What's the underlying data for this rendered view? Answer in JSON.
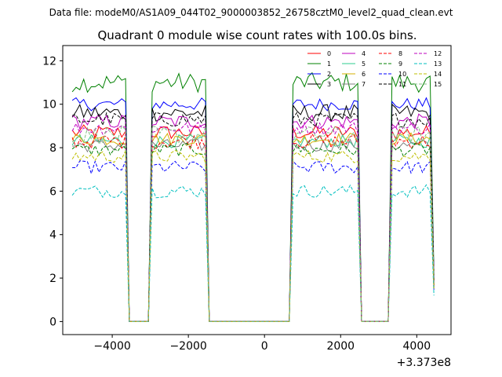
{
  "figure": {
    "supertitle": "Data file: modeM0/AS1A09_044T02_9000003852_26758cztM0_level2_quad_clean.evt"
  },
  "chart_data": {
    "type": "line",
    "title": "Quadrant 0 module wise count rates with 100.0s bins.",
    "xlabel": "",
    "ylabel": "",
    "x_offset_label": "+3.373e8",
    "xlim": [
      -5300,
      4900
    ],
    "ylim": [
      -0.6,
      12.7
    ],
    "x_ticks": [
      -4000,
      -2000,
      0,
      2000,
      4000
    ],
    "x_tick_labels": [
      "−4000",
      "−2000",
      "0",
      "2000",
      "4000"
    ],
    "y_ticks": [
      0,
      2,
      4,
      6,
      8,
      10,
      12
    ],
    "y_tick_labels": [
      "0",
      "2",
      "4",
      "6",
      "8",
      "10",
      "12"
    ],
    "grid": false,
    "legend_position": "top-right",
    "legend_columns": 4,
    "segments": [
      {
        "x_start": -5050,
        "x_end": -3650,
        "level_scale": 1.0
      },
      {
        "x_start": -3550,
        "x_end": -3050,
        "level_scale": 0.0
      },
      {
        "x_start": -2950,
        "x_end": -1550,
        "level_scale": 1.0
      },
      {
        "x_start": -1450,
        "x_end": 650,
        "level_scale": 0.0
      },
      {
        "x_start": 750,
        "x_end": 2450,
        "level_scale": 1.0
      },
      {
        "x_start": 2550,
        "x_end": 3250,
        "level_scale": 0.0
      },
      {
        "x_start": 3350,
        "x_end": 4350,
        "level_scale": 1.0
      },
      {
        "x_start": 4450,
        "x_end": 4450,
        "level_scale": 0.2
      }
    ],
    "series": [
      {
        "name": "0",
        "color": "#ff0000",
        "dash": "solid",
        "level": 8.7,
        "jitter": 0.35
      },
      {
        "name": "1",
        "color": "#008000",
        "dash": "solid",
        "level": 11.0,
        "jitter": 0.45
      },
      {
        "name": "2",
        "color": "#0000ff",
        "dash": "solid",
        "level": 10.0,
        "jitter": 0.3
      },
      {
        "name": "3",
        "color": "#000000",
        "dash": "solid",
        "level": 9.6,
        "jitter": 0.4
      },
      {
        "name": "4",
        "color": "#bf00bf",
        "dash": "solid",
        "level": 9.2,
        "jitter": 0.35
      },
      {
        "name": "5",
        "color": "#2ecc8f",
        "dash": "solid",
        "level": 8.3,
        "jitter": 0.3
      },
      {
        "name": "6",
        "color": "#d4b000",
        "dash": "solid",
        "level": 8.4,
        "jitter": 0.3
      },
      {
        "name": "7",
        "color": "#808080",
        "dash": "solid",
        "level": 8.1,
        "jitter": 0.3
      },
      {
        "name": "8",
        "color": "#ff0000",
        "dash": "dashed",
        "level": 8.3,
        "jitter": 0.35
      },
      {
        "name": "9",
        "color": "#008000",
        "dash": "dashed",
        "level": 7.9,
        "jitter": 0.3
      },
      {
        "name": "10",
        "color": "#0000ff",
        "dash": "dashed",
        "level": 7.1,
        "jitter": 0.3
      },
      {
        "name": "11",
        "color": "#000000",
        "dash": "dashed",
        "level": 9.3,
        "jitter": 0.35
      },
      {
        "name": "12",
        "color": "#bf00bf",
        "dash": "dashed",
        "level": 8.9,
        "jitter": 0.3
      },
      {
        "name": "13",
        "color": "#00bfbf",
        "dash": "dashed",
        "level": 6.0,
        "jitter": 0.3
      },
      {
        "name": "14",
        "color": "#bfbf00",
        "dash": "dashed",
        "level": 7.6,
        "jitter": 0.3
      },
      {
        "name": "15",
        "color": "#7fbf7f",
        "dash": "dashed",
        "level": 8.6,
        "jitter": 0.4
      }
    ]
  }
}
